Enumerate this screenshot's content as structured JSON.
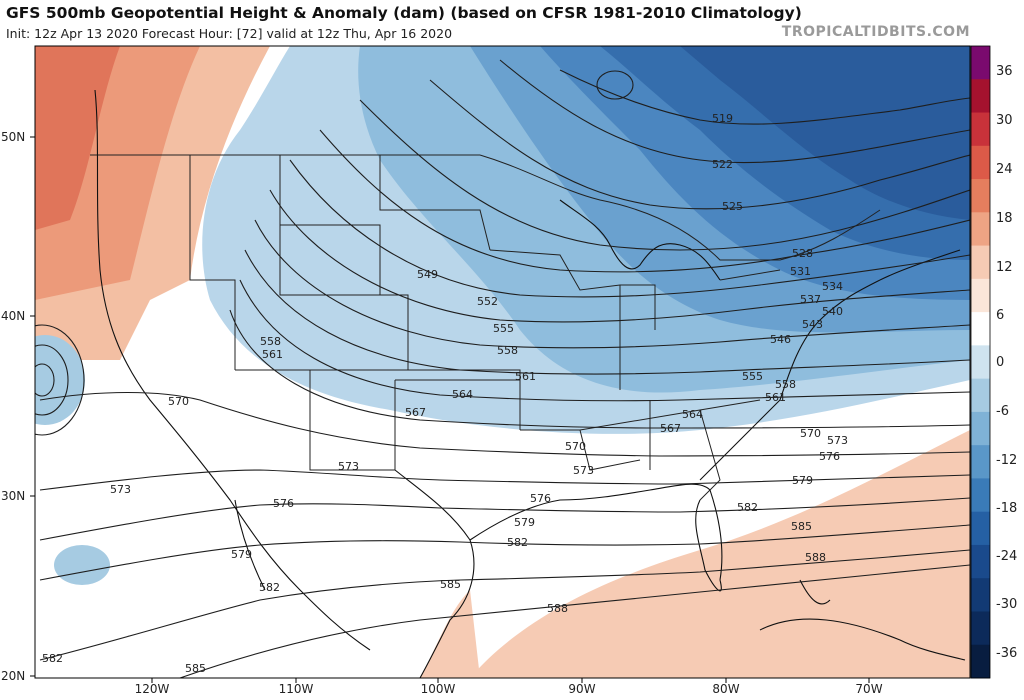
{
  "header": {
    "title": "GFS 500mb Geopotential Height & Anomaly (dam) (based on CFSR 1981-2010 Climatology)",
    "subtitle": "Init: 12z Apr 13 2020   Forecast Hour: [72]   valid at 12z Thu, Apr 16 2020",
    "brand": "TROPICALTIDBITS.COM"
  },
  "colorbar": {
    "labels": [
      "36",
      "30",
      "24",
      "18",
      "12",
      "6",
      "0",
      "-6",
      "-12",
      "-18",
      "-24",
      "-30",
      "-36"
    ],
    "colors": [
      "#7a0a6e",
      "#a5122e",
      "#c8323a",
      "#dc5a48",
      "#e57e5e",
      "#eea484",
      "#f6cbb4",
      "#fbe6d9",
      "#ffffff",
      "#cfe3ef",
      "#a6cbe2",
      "#7fb2d6",
      "#5a97c8",
      "#3a7bb8",
      "#2560a4",
      "#1a4a8c",
      "#123a74",
      "#0c2a5a",
      "#081d40"
    ]
  },
  "axes": {
    "lat_labels": [
      "50N",
      "40N",
      "30N",
      "20N"
    ],
    "lon_labels": [
      "120W",
      "110W",
      "100W",
      "90W",
      "80W",
      "70W"
    ]
  },
  "contour_labels": [
    "519",
    "522",
    "525",
    "528",
    "531",
    "534",
    "537",
    "540",
    "543",
    "546",
    "549",
    "552",
    "555",
    "558",
    "561",
    "564",
    "567",
    "570",
    "573",
    "576",
    "579",
    "582",
    "585",
    "588"
  ]
}
